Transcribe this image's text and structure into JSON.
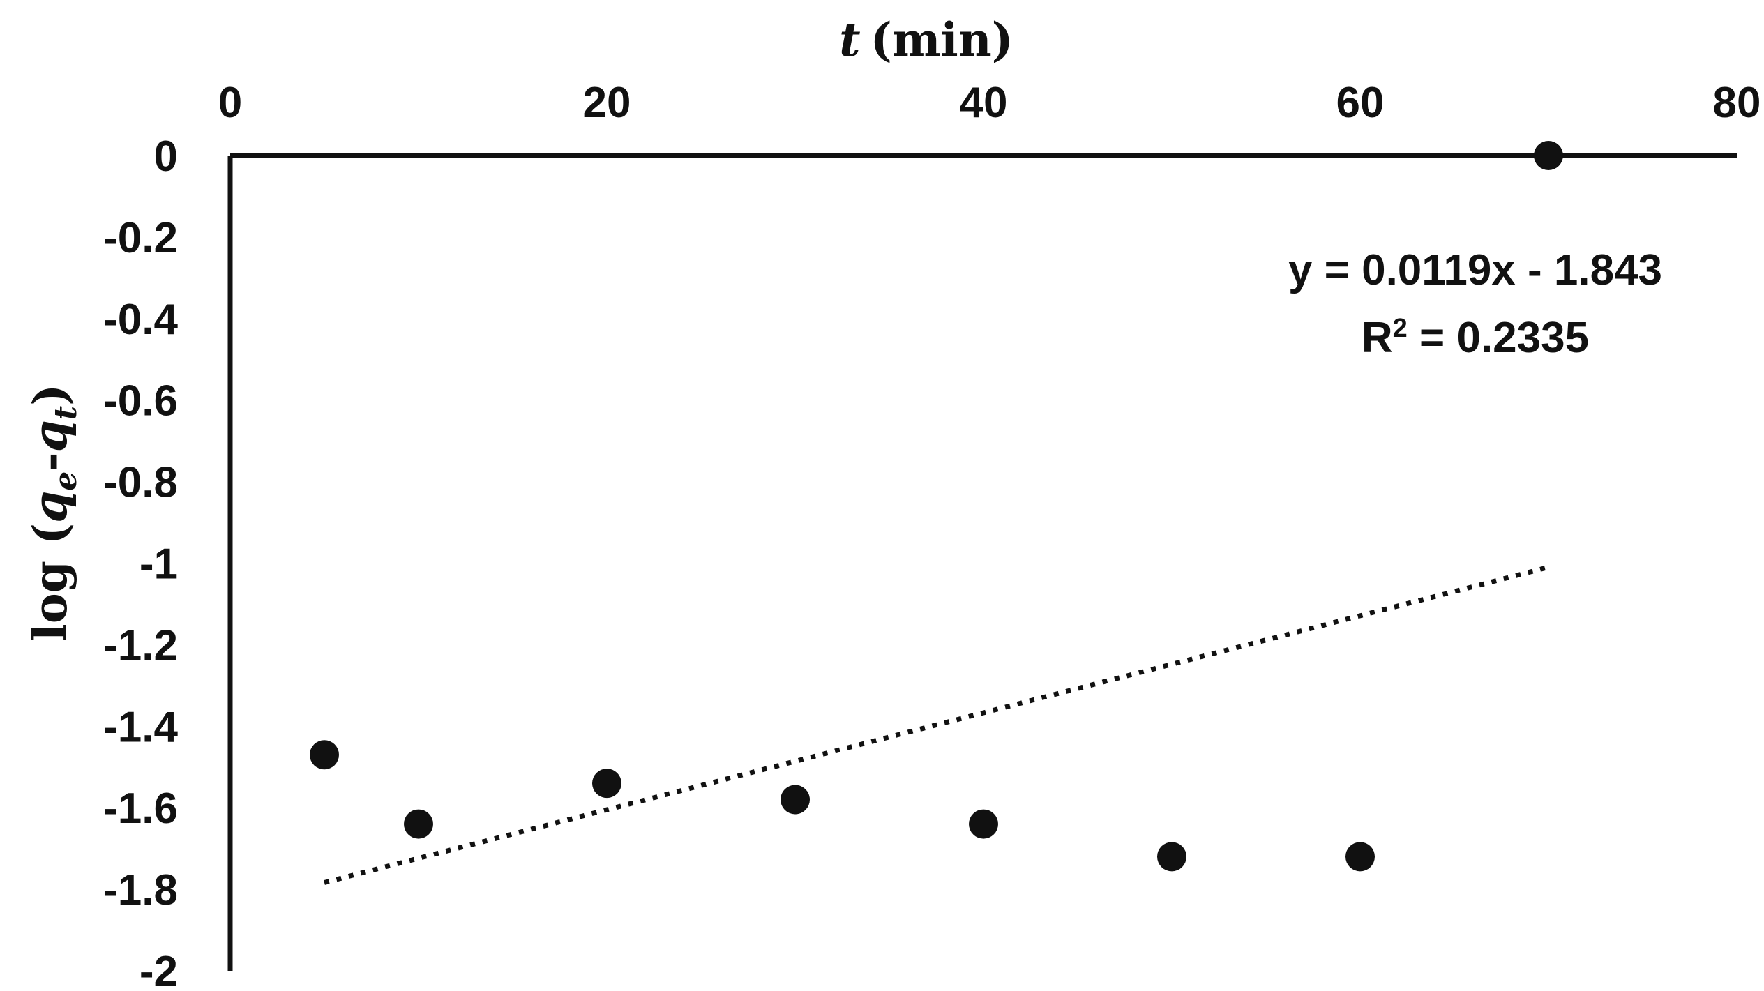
{
  "chart_data": {
    "type": "scatter",
    "xlabel_var": "t",
    "xlabel_unit": "(min)",
    "ylabel_main": "log (",
    "ylabel_qe": "q",
    "ylabel_qe_sub": "e",
    "ylabel_dash": "-",
    "ylabel_qt": "q",
    "ylabel_qt_sub": "t",
    "ylabel_close": ")",
    "xlim": [
      0,
      80
    ],
    "ylim": [
      -2,
      0
    ],
    "xticks": [
      "0",
      "20",
      "40",
      "60",
      "80"
    ],
    "yticks": [
      "0",
      "-0.2",
      "-0.4",
      "-0.6",
      "-0.8",
      "-1",
      "-1.2",
      "-1.4",
      "-1.6",
      "-1.8",
      "-2"
    ],
    "x_axis_position": "top",
    "grid": false,
    "series": [
      {
        "x": [
          5,
          10,
          20,
          30,
          40,
          50,
          60,
          70
        ],
        "y": [
          -1.47,
          -1.64,
          -1.54,
          -1.58,
          -1.64,
          -1.72,
          -1.72,
          0
        ]
      }
    ],
    "trendline": {
      "style": "dotted",
      "slope": 0.0119,
      "intercept": -1.843,
      "x_range": [
        5,
        70
      ]
    },
    "annotations": {
      "equation": "y = 0.0119x - 1.843",
      "r2_prefix": "R",
      "r2_sup": "2",
      "r2_value": " = 0.2335"
    }
  }
}
